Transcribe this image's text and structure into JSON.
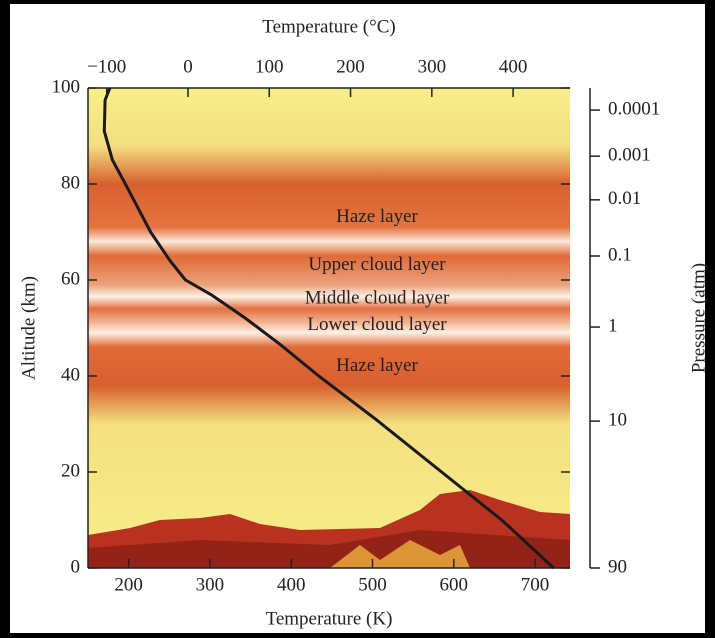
{
  "chart_data": {
    "type": "line",
    "xlabel": "Temperature (K)",
    "x2label": "Temperature (°C)",
    "ylabel": "Altitude (km)",
    "xlim": [
      150,
      743
    ],
    "xticks": [
      200,
      300,
      400,
      500,
      600,
      700
    ],
    "x2lim": [
      -123,
      470
    ],
    "x2ticks": [
      {
        "value": -100,
        "label": "−100"
      },
      0,
      100,
      200,
      300,
      400
    ],
    "ylim": [
      0,
      100
    ],
    "yticks": [
      0,
      20,
      40,
      60,
      80,
      100
    ],
    "pressure_axis": {
      "label": "Pressure (atm)",
      "ticks": [
        0.0001,
        0.001,
        0.01,
        0.1,
        1,
        10,
        90
      ],
      "tick_altitudes": [
        95.4,
        85.8,
        76.7,
        65,
        50.2,
        30.6,
        0
      ]
    },
    "series": [
      {
        "color": "#1a1a1a",
        "x": [
          177,
          171,
          170,
          180,
          196,
          227,
          251,
          270,
          301,
          344,
          387,
          434,
          504,
          585,
          659,
          723
        ],
        "values": [
          100,
          97.5,
          91,
          85,
          80,
          70,
          64,
          60,
          57,
          52,
          46.5,
          40,
          31,
          20,
          10,
          0
        ]
      }
    ],
    "annotations": [
      {
        "text": "Haze layer",
        "altitude": 73
      },
      {
        "text": "Upper cloud layer",
        "altitude": 63
      },
      {
        "text": "Middle cloud layer",
        "altitude": 56
      },
      {
        "text": "Lower cloud layer",
        "altitude": 50.5
      },
      {
        "text": "Haze layer",
        "altitude": 42
      }
    ]
  }
}
